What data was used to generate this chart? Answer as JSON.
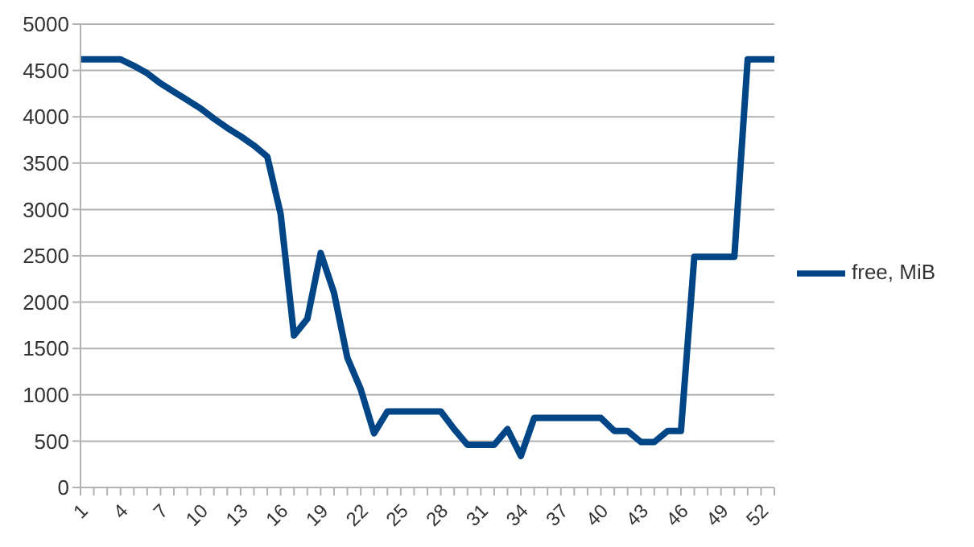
{
  "chart_data": {
    "type": "line",
    "categories": [
      "1",
      null,
      null,
      "4",
      null,
      null,
      "7",
      null,
      null,
      "10",
      null,
      null,
      "13",
      null,
      null,
      "16",
      null,
      null,
      "19",
      null,
      null,
      "22",
      null,
      null,
      "25",
      null,
      null,
      "28",
      null,
      null,
      "31",
      null,
      null,
      "34",
      null,
      null,
      "37",
      null,
      null,
      "40",
      null,
      null,
      "43",
      null,
      null,
      "46",
      null,
      null,
      "49",
      null,
      null,
      "52",
      null
    ],
    "series": [
      {
        "name": "free, MiB",
        "color": "#004586",
        "values": [
          4620,
          4620,
          4620,
          4620,
          4550,
          4470,
          4360,
          4270,
          4180,
          4090,
          3980,
          3880,
          3790,
          3690,
          3570,
          2950,
          1640,
          1820,
          2530,
          2100,
          1400,
          1060,
          585,
          820,
          820,
          820,
          820,
          820,
          630,
          460,
          460,
          460,
          630,
          340,
          750,
          750,
          750,
          750,
          750,
          750,
          610,
          610,
          490,
          490,
          610,
          610,
          2490,
          2490,
          2490,
          2490,
          4620,
          4620,
          4620
        ]
      }
    ],
    "ylim": [
      0,
      5000
    ],
    "yticks": [
      0,
      500,
      1000,
      1500,
      2000,
      2500,
      3000,
      3500,
      4000,
      4500,
      5000
    ],
    "grid": "y",
    "legend": "right",
    "marker": "none",
    "line_style": "solid"
  }
}
